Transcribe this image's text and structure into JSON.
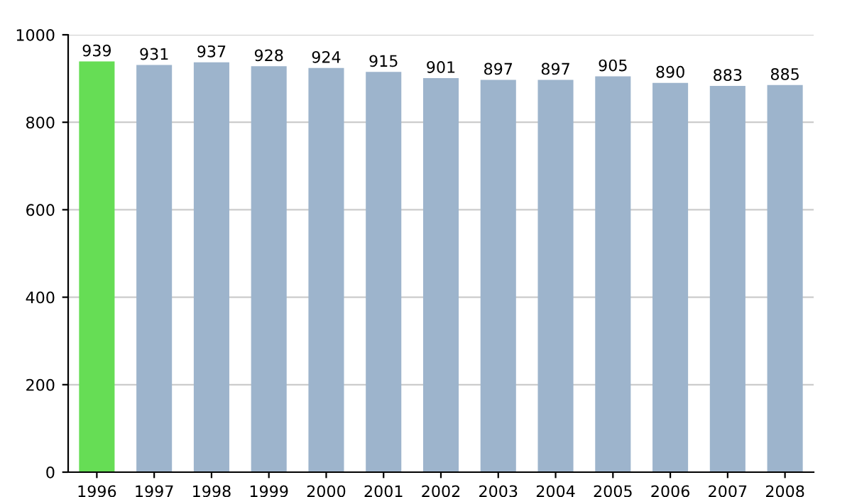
{
  "chart_data": {
    "type": "bar",
    "categories": [
      "1996",
      "1997",
      "1998",
      "1999",
      "2000",
      "2001",
      "2002",
      "2003",
      "2004",
      "2005",
      "2006",
      "2007",
      "2008"
    ],
    "values": [
      939,
      931,
      937,
      928,
      924,
      915,
      901,
      897,
      897,
      905,
      890,
      883,
      885
    ],
    "colors": [
      "#66dd55",
      "#9db4cc",
      "#9db4cc",
      "#9db4cc",
      "#9db4cc",
      "#9db4cc",
      "#9db4cc",
      "#9db4cc",
      "#9db4cc",
      "#9db4cc",
      "#9db4cc",
      "#9db4cc",
      "#9db4cc"
    ],
    "ylim": [
      0,
      1000
    ],
    "yticks": [
      0,
      200,
      400,
      600,
      800,
      1000
    ],
    "grid": "y",
    "data_labels": true
  }
}
